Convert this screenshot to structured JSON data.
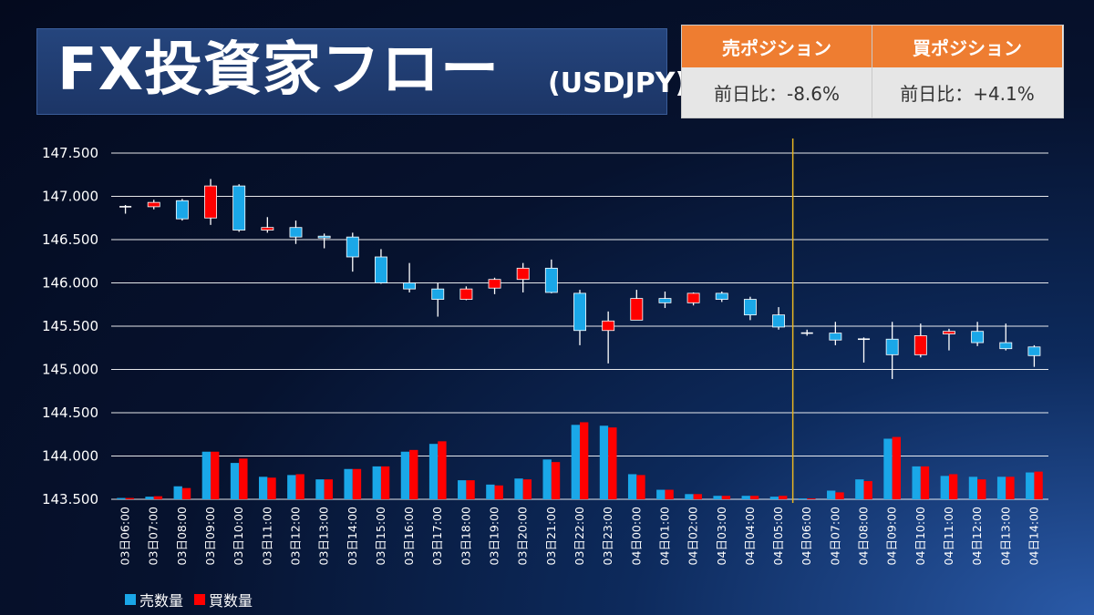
{
  "title": {
    "main": "FX投資家フロー",
    "sub": "(USDJPY)"
  },
  "positions": {
    "sell": {
      "header": "売ポジション",
      "value": "前日比：-8.6%"
    },
    "buy": {
      "header": "買ポジション",
      "value": "前日比：+4.1%"
    }
  },
  "legend": {
    "sell": "売数量",
    "buy": "買数量"
  },
  "colors": {
    "sell": "#1aa7e8",
    "buy": "#ff0000",
    "divider": "#e6b422",
    "grid": "#ffffff",
    "doji": "#ffffff"
  },
  "chart_data": {
    "type": "candlestick",
    "y_ticks": [
      "147.500",
      "147.000",
      "146.500",
      "146.000",
      "145.500",
      "145.000",
      "144.500",
      "144.000",
      "143.500"
    ],
    "ylim": [
      143.5,
      147.5
    ],
    "grid": true,
    "legend_position": "bottom-left",
    "divider_after": "04日05:00",
    "categories": [
      "03日06:00",
      "03日07:00",
      "03日08:00",
      "03日09:00",
      "03日10:00",
      "03日11:00",
      "03日12:00",
      "03日13:00",
      "03日14:00",
      "03日15:00",
      "03日16:00",
      "03日17:00",
      "03日18:00",
      "03日19:00",
      "03日20:00",
      "03日21:00",
      "03日22:00",
      "03日23:00",
      "04日00:00",
      "04日01:00",
      "04日02:00",
      "04日03:00",
      "04日04:00",
      "04日05:00",
      "04日06:00",
      "04日07:00",
      "04日08:00",
      "04日09:00",
      "04日10:00",
      "04日11:00",
      "04日12:00",
      "04日13:00",
      "04日14:00"
    ],
    "candles": [
      {
        "o": 146.88,
        "h": 146.9,
        "l": 146.8,
        "c": 146.88
      },
      {
        "o": 146.88,
        "h": 146.96,
        "l": 146.85,
        "c": 146.93
      },
      {
        "o": 146.95,
        "h": 146.97,
        "l": 146.72,
        "c": 146.74
      },
      {
        "o": 146.75,
        "h": 147.2,
        "l": 146.67,
        "c": 147.12
      },
      {
        "o": 147.12,
        "h": 147.14,
        "l": 146.59,
        "c": 146.61
      },
      {
        "o": 146.61,
        "h": 146.76,
        "l": 146.58,
        "c": 146.64
      },
      {
        "o": 146.64,
        "h": 146.72,
        "l": 146.45,
        "c": 146.53
      },
      {
        "o": 146.54,
        "h": 146.57,
        "l": 146.4,
        "c": 146.53
      },
      {
        "o": 146.53,
        "h": 146.58,
        "l": 146.13,
        "c": 146.3
      },
      {
        "o": 146.3,
        "h": 146.39,
        "l": 145.99,
        "c": 146.0
      },
      {
        "o": 146.0,
        "h": 146.23,
        "l": 145.89,
        "c": 145.93
      },
      {
        "o": 145.93,
        "h": 146.0,
        "l": 145.61,
        "c": 145.81
      },
      {
        "o": 145.81,
        "h": 145.96,
        "l": 145.8,
        "c": 145.93
      },
      {
        "o": 145.94,
        "h": 146.06,
        "l": 145.87,
        "c": 146.04
      },
      {
        "o": 146.04,
        "h": 146.23,
        "l": 145.89,
        "c": 146.17
      },
      {
        "o": 146.17,
        "h": 146.27,
        "l": 145.88,
        "c": 145.89
      },
      {
        "o": 145.88,
        "h": 145.92,
        "l": 145.28,
        "c": 145.45
      },
      {
        "o": 145.45,
        "h": 145.67,
        "l": 145.07,
        "c": 145.56
      },
      {
        "o": 145.57,
        "h": 145.92,
        "l": 145.57,
        "c": 145.82
      },
      {
        "o": 145.82,
        "h": 145.9,
        "l": 145.71,
        "c": 145.77
      },
      {
        "o": 145.77,
        "h": 145.89,
        "l": 145.74,
        "c": 145.88
      },
      {
        "o": 145.88,
        "h": 145.9,
        "l": 145.78,
        "c": 145.81
      },
      {
        "o": 145.81,
        "h": 145.84,
        "l": 145.57,
        "c": 145.63
      },
      {
        "o": 145.63,
        "h": 145.72,
        "l": 145.46,
        "c": 145.49
      },
      {
        "o": 145.42,
        "h": 145.46,
        "l": 145.39,
        "c": 145.42
      },
      {
        "o": 145.42,
        "h": 145.55,
        "l": 145.28,
        "c": 145.34
      },
      {
        "o": 145.35,
        "h": 145.37,
        "l": 145.08,
        "c": 145.35
      },
      {
        "o": 145.35,
        "h": 145.55,
        "l": 144.89,
        "c": 145.17
      },
      {
        "o": 145.17,
        "h": 145.53,
        "l": 145.14,
        "c": 145.39
      },
      {
        "o": 145.41,
        "h": 145.47,
        "l": 145.22,
        "c": 145.44
      },
      {
        "o": 145.44,
        "h": 145.55,
        "l": 145.27,
        "c": 145.31
      },
      {
        "o": 145.31,
        "h": 145.53,
        "l": 145.22,
        "c": 145.24
      },
      {
        "o": 145.26,
        "h": 145.28,
        "l": 145.03,
        "c": 145.16
      }
    ],
    "series": [
      {
        "name": "売数量",
        "values": [
          143.515,
          143.53,
          143.65,
          144.05,
          143.92,
          143.76,
          143.78,
          143.73,
          143.85,
          143.88,
          144.05,
          144.14,
          143.72,
          143.67,
          143.74,
          143.96,
          144.36,
          144.35,
          143.79,
          143.61,
          143.56,
          143.54,
          143.54,
          143.53,
          143.51,
          143.6,
          143.73,
          144.2,
          143.88,
          143.77,
          143.76,
          143.76,
          143.81
        ]
      },
      {
        "name": "買数量",
        "values": [
          143.515,
          143.535,
          143.63,
          144.05,
          143.97,
          143.75,
          143.79,
          143.73,
          143.85,
          143.88,
          144.07,
          144.17,
          143.72,
          143.66,
          143.73,
          143.93,
          144.39,
          144.33,
          143.78,
          143.61,
          143.56,
          143.54,
          143.54,
          143.54,
          143.51,
          143.58,
          143.71,
          144.22,
          143.88,
          143.79,
          143.73,
          143.76,
          143.82
        ]
      }
    ]
  }
}
